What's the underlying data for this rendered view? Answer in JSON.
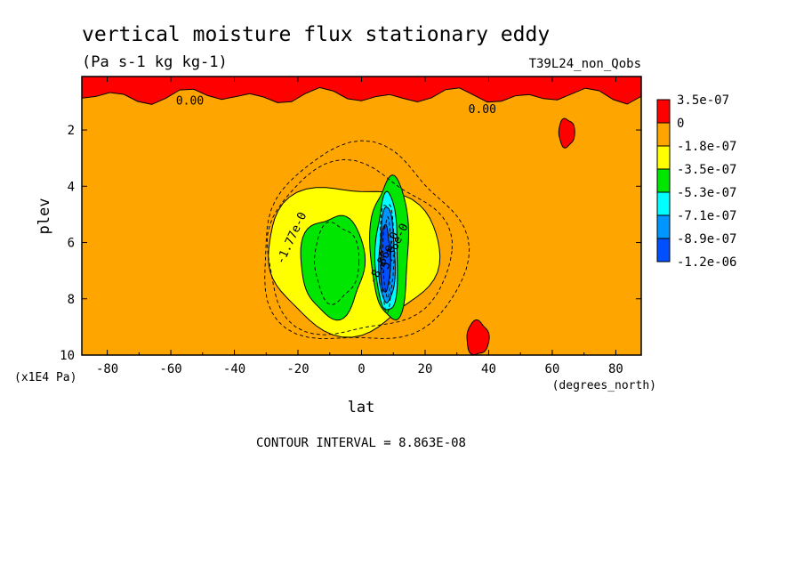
{
  "chart_data": {
    "type": "heatmap",
    "title": "vertical moisture flux stationary eddy",
    "units": "(Pa s-1 kg kg-1)",
    "dataset": "T39L24_non_Qobs",
    "xlabel": "lat",
    "xunits": "(degrees_north)",
    "ylabel": "plev",
    "yunits": "(x1E4 Pa)",
    "xlim": [
      -88,
      88
    ],
    "ylim": [
      10,
      0.1
    ],
    "xticks": [
      -80,
      -60,
      -40,
      -20,
      0,
      20,
      40,
      60,
      80
    ],
    "yticks": [
      2,
      4,
      6,
      8,
      10
    ],
    "contour_interval_label": "CONTOUR INTERVAL = 8.863E-08",
    "contour_labels": [
      {
        "text": "0.00",
        "lat": -54,
        "plev": 1.1
      },
      {
        "text": "0.00",
        "lat": 38,
        "plev": 1.4
      },
      {
        "text": "-1.77e-0",
        "lat": -21,
        "plev": 5.9
      },
      {
        "text": "-5.36e-0",
        "lat": 11,
        "plev": 6.3
      },
      {
        "text": "-8.86e-0",
        "lat": 8,
        "plev": 6.6
      }
    ],
    "legend": {
      "placement": "right",
      "labels": [
        "3.5e-07",
        "0",
        "-1.8e-07",
        "-3.5e-07",
        "-5.3e-07",
        "-7.1e-07",
        "-8.9e-07",
        "-1.2e-06"
      ],
      "colors": [
        "#ff0000",
        "#ffa500",
        "#ffff00",
        "#00e600",
        "#00ffff",
        "#0096ff",
        "#0050ff"
      ]
    },
    "regions": [
      {
        "level": "positive",
        "color": "#ff0000",
        "lat": [
          -88,
          88
        ],
        "plev": [
          0.1,
          0.8
        ]
      },
      {
        "level": "positive",
        "color": "#ff0000",
        "lat": [
          33,
          40
        ],
        "plev": [
          8.8,
          10
        ]
      },
      {
        "level": "positive",
        "color": "#ff0000",
        "lat": [
          62,
          67
        ],
        "plev": [
          1.6,
          2.6
        ]
      },
      {
        "level": "negative",
        "color": "#ffff00",
        "center_lat": -3,
        "center_plev": 6.5,
        "lat_halfwidth": 27,
        "plev_halfwidth": 2.6
      },
      {
        "level": "negative",
        "color": "#00e600",
        "center_lat": -9,
        "center_plev": 6.8,
        "lat_halfwidth": 10,
        "plev_halfwidth": 1.8
      },
      {
        "level": "negative",
        "color": "#00e600",
        "center_lat": 9,
        "center_plev": 6.2,
        "lat_halfwidth": 6,
        "plev_halfwidth": 2.5
      },
      {
        "level": "negative",
        "color": "#00ffff",
        "center_lat": 8,
        "center_plev": 6.4,
        "lat_halfwidth": 3.5,
        "plev_halfwidth": 2.1
      },
      {
        "level": "negative",
        "color": "#0096ff",
        "center_lat": 8,
        "center_plev": 6.5,
        "lat_halfwidth": 2.5,
        "plev_halfwidth": 1.7
      },
      {
        "level": "negative",
        "color": "#0050ff",
        "center_lat": 7.5,
        "center_plev": 6.6,
        "lat_halfwidth": 1.5,
        "plev_halfwidth": 1.2
      }
    ]
  }
}
